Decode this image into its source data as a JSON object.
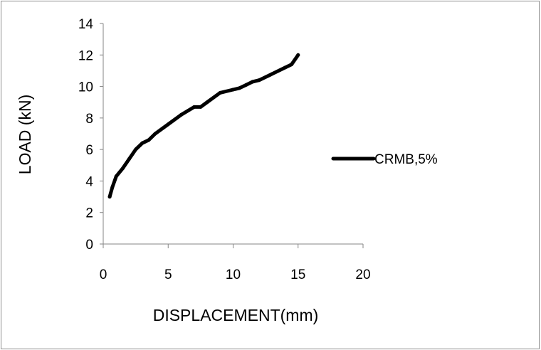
{
  "chart_data": {
    "type": "line",
    "title": "",
    "xlabel": "DISPLACEMENT(mm)",
    "ylabel": "LOAD (kN)",
    "xlim": [
      0,
      20
    ],
    "ylim": [
      0,
      14
    ],
    "x_ticks": [
      "0",
      "5",
      "10",
      "15",
      "20"
    ],
    "y_ticks": [
      "0",
      "2",
      "4",
      "6",
      "8",
      "10",
      "12",
      "14"
    ],
    "grid": false,
    "legend_position": "right",
    "series": [
      {
        "name": "CRMB,5%",
        "color": "#000000",
        "x": [
          0.5,
          0.7,
          1.0,
          1.5,
          2.0,
          2.5,
          3.0,
          3.5,
          4.0,
          5.0,
          6.0,
          7.0,
          7.5,
          8.0,
          9.0,
          10.0,
          10.5,
          11.0,
          11.5,
          12.0,
          13.0,
          14.0,
          14.5,
          15.0
        ],
        "y": [
          3.0,
          3.6,
          4.3,
          4.8,
          5.4,
          6.0,
          6.4,
          6.6,
          7.0,
          7.6,
          8.2,
          8.7,
          8.7,
          9.0,
          9.6,
          9.8,
          9.9,
          10.1,
          10.3,
          10.4,
          10.8,
          11.2,
          11.4,
          12.0
        ]
      }
    ]
  }
}
